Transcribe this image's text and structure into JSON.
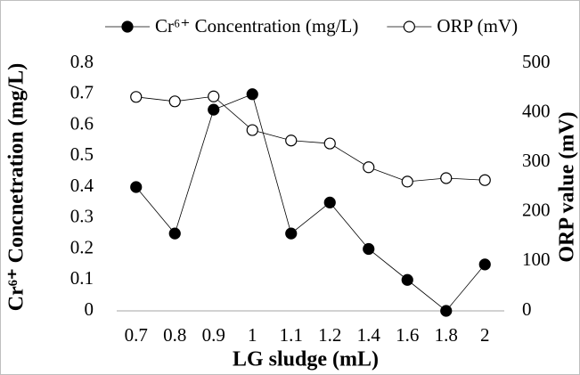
{
  "chart_data": {
    "type": "line",
    "x_label": "LG sludge (mL)",
    "y_label": "Cr⁶⁺ Concnetration (mg/L)",
    "y2_label": "ORP value (mV)",
    "categories": [
      "0.7",
      "0.8",
      "0.9",
      "1",
      "1.1",
      "1.2",
      "1.4",
      "1.6",
      "1.8",
      "2"
    ],
    "series": [
      {
        "name": "Cr⁶⁺ Concentration (mg/L)",
        "color": "#000000",
        "marker_fill": "#000000",
        "values": [
          0.4,
          0.25,
          0.65,
          0.7,
          0.25,
          0.35,
          0.2,
          0.1,
          0,
          0.15
        ]
      },
      {
        "name": "ORP (mV)",
        "color": "#000000",
        "marker_fill": "#ffffff",
        "axis": "y2",
        "values": [
          432,
          423,
          433,
          365,
          344,
          338,
          290,
          261,
          268,
          264
        ]
      }
    ],
    "ylim": [
      0,
      0.8
    ],
    "yticks": [
      0,
      0.1,
      0.2,
      0.3,
      0.4,
      0.5,
      0.6,
      0.7,
      0.8
    ],
    "y2lim": [
      0,
      500
    ],
    "y2ticks": [
      0,
      100,
      200,
      300,
      400,
      500
    ],
    "legend": "top"
  }
}
